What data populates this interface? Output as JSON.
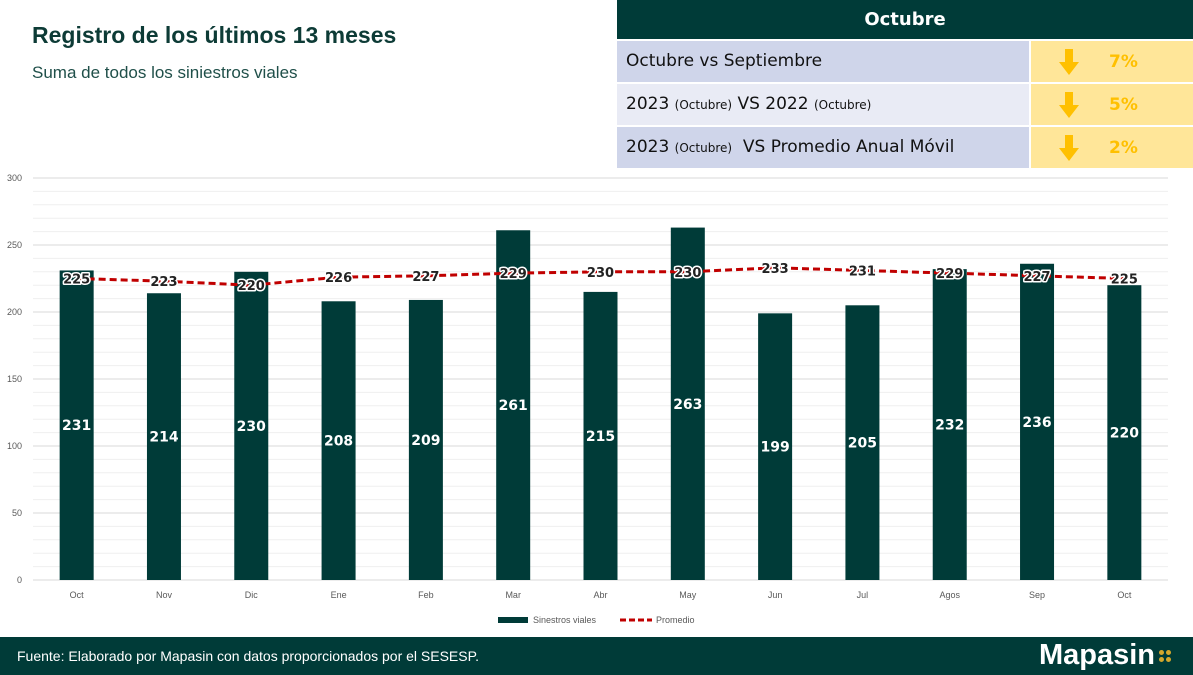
{
  "header": {
    "title": "Registro de los últimos 13 meses",
    "subtitle": "Suma de todos los siniestros viales"
  },
  "summary": {
    "title": "Octubre",
    "rows": [
      {
        "label_main": "Octubre vs Septiembre",
        "label_parts": [
          "Octubre vs Septiembre"
        ],
        "direction": "down",
        "value": "7%"
      },
      {
        "label_parts": [
          "2023 ",
          "(Octubre)",
          " VS 2022 ",
          "(Octubre)"
        ],
        "direction": "down",
        "value": "5%"
      },
      {
        "label_parts": [
          "2023 ",
          "(Octubre)",
          "  VS Promedio Anual Móvil",
          ""
        ],
        "direction": "down",
        "value": "2%"
      }
    ],
    "colors": {
      "header": "#003b38",
      "label_bg": [
        "#cfd5ea",
        "#e9ebf5",
        "#cfd5ea"
      ],
      "value_bg": "#ffe699",
      "arrow": "#ffc000"
    }
  },
  "chart_data": {
    "type": "bar",
    "categories": [
      "Oct",
      "Nov",
      "Dic",
      "Ene",
      "Feb",
      "Mar",
      "Abr",
      "May",
      "Jun",
      "Jul",
      "Agos",
      "Sep",
      "Oct"
    ],
    "series": [
      {
        "name": "Sinestros viales",
        "type": "bar",
        "color": "#003b38",
        "values": [
          231,
          214,
          230,
          208,
          209,
          261,
          215,
          263,
          199,
          205,
          232,
          236,
          220
        ]
      },
      {
        "name": "Promedio",
        "type": "line",
        "style": "dashed",
        "color": "#c00000",
        "values": [
          225,
          223,
          220,
          226,
          227,
          229,
          230,
          230,
          233,
          231,
          229,
          227,
          225
        ]
      }
    ],
    "ylim": [
      0,
      300
    ],
    "yticks": [
      0,
      50,
      100,
      150,
      200,
      250,
      300
    ],
    "grid": true,
    "legend": "bottom"
  },
  "footer": {
    "source": "Fuente: Elaborado por Mapasin con datos proporcionados por el SESESP.",
    "logo": "Mapasin"
  }
}
